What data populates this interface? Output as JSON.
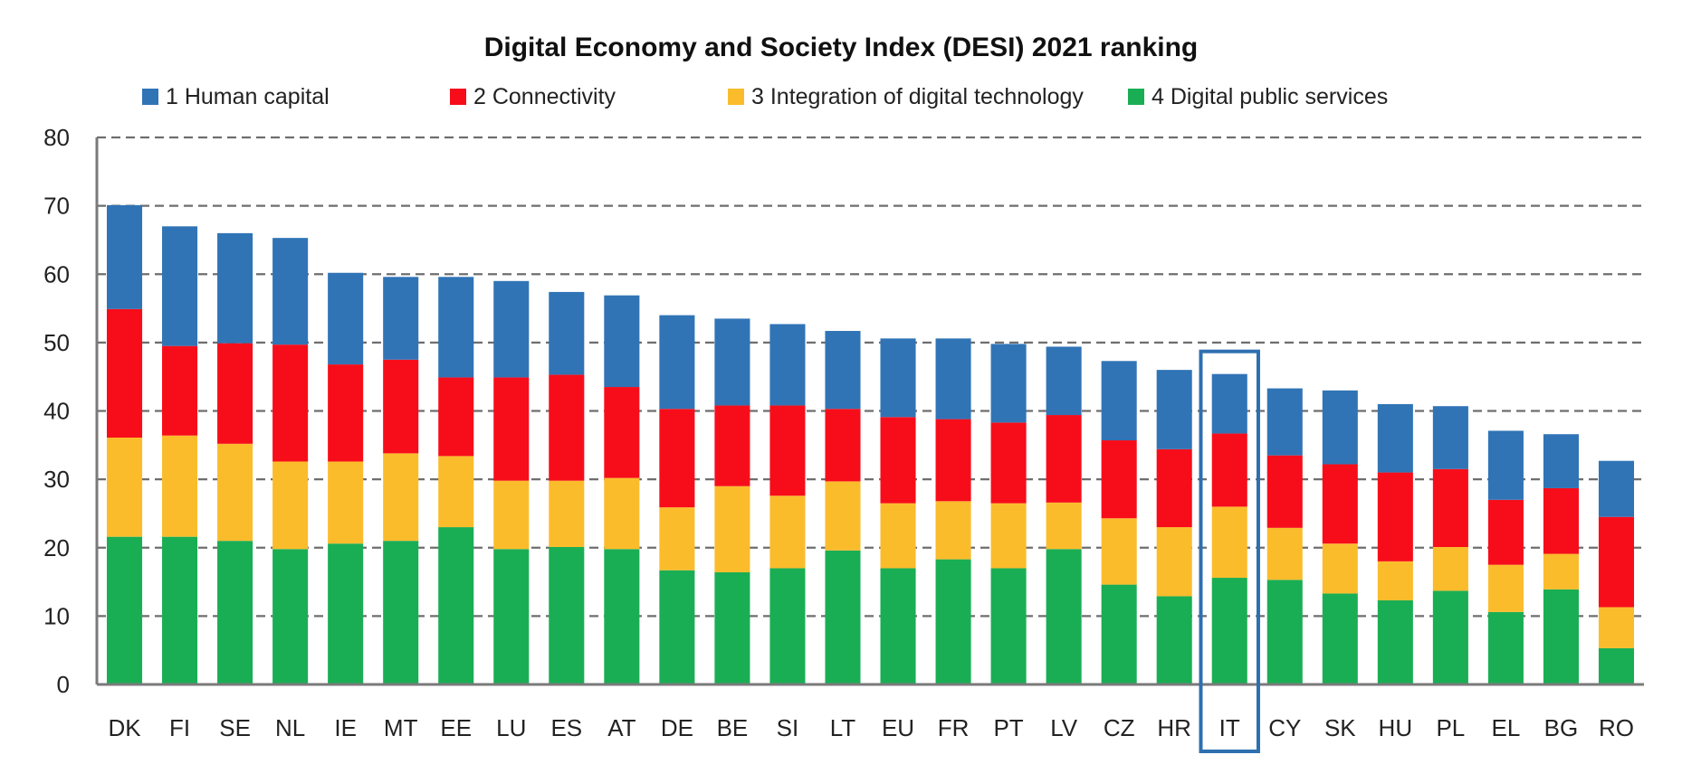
{
  "chart_data": {
    "type": "bar",
    "stacked": true,
    "title": "Digital Economy and Society Index (DESI) 2021 ranking",
    "xlabel": "",
    "ylabel": "",
    "ylim": [
      0,
      80
    ],
    "yticks": [
      0,
      10,
      20,
      30,
      40,
      50,
      60,
      70,
      80
    ],
    "grid": true,
    "legend_position": "top",
    "highlighted_category": "IT",
    "categories": [
      "DK",
      "FI",
      "SE",
      "NL",
      "IE",
      "MT",
      "EE",
      "LU",
      "ES",
      "AT",
      "DE",
      "BE",
      "SI",
      "LT",
      "EU",
      "FR",
      "PT",
      "LV",
      "CZ",
      "HR",
      "IT",
      "CY",
      "SK",
      "HU",
      "PL",
      "EL",
      "BG",
      "RO"
    ],
    "series": [
      {
        "name": "4 Digital public services",
        "color": "#1aae54",
        "values": [
          21.6,
          21.6,
          21.0,
          19.8,
          20.6,
          21.0,
          23.0,
          19.8,
          20.1,
          19.8,
          16.7,
          16.4,
          17.0,
          19.6,
          17.0,
          18.3,
          17.0,
          19.8,
          14.6,
          12.9,
          15.6,
          15.3,
          13.3,
          12.3,
          13.7,
          10.6,
          13.9,
          5.3
        ]
      },
      {
        "name": "3 Integration of digital technology",
        "color": "#fbbc2c",
        "values": [
          14.5,
          14.8,
          14.2,
          12.8,
          12.0,
          12.8,
          10.4,
          10.0,
          9.7,
          10.4,
          9.2,
          12.6,
          10.6,
          10.1,
          9.5,
          8.5,
          9.5,
          6.8,
          9.7,
          10.1,
          10.4,
          7.6,
          7.3,
          5.7,
          6.4,
          6.9,
          5.2,
          6.0
        ]
      },
      {
        "name": "2 Connectivity",
        "color": "#f70d1a",
        "values": [
          18.8,
          13.1,
          14.7,
          17.1,
          14.2,
          13.7,
          11.5,
          15.1,
          15.5,
          13.3,
          14.4,
          11.8,
          13.2,
          10.6,
          12.6,
          12.0,
          11.8,
          12.8,
          11.4,
          11.4,
          10.7,
          10.6,
          11.6,
          13.0,
          11.4,
          9.5,
          9.6,
          13.2
        ]
      },
      {
        "name": "1 Human capital",
        "color": "#3074b6",
        "values": [
          15.2,
          17.5,
          16.1,
          15.6,
          13.4,
          12.1,
          14.7,
          14.1,
          12.1,
          13.4,
          13.7,
          12.7,
          11.9,
          11.4,
          11.5,
          11.8,
          11.5,
          10.0,
          11.6,
          11.6,
          8.7,
          9.8,
          10.8,
          10.0,
          9.2,
          10.1,
          7.9,
          8.2
        ]
      }
    ],
    "totals": [
      70.1,
      67.0,
      66.0,
      65.3,
      60.2,
      59.6,
      59.6,
      59.0,
      57.4,
      56.9,
      54.0,
      53.5,
      52.7,
      51.7,
      50.6,
      50.6,
      49.8,
      49.4,
      47.3,
      46.0,
      45.4,
      43.3,
      43.0,
      41.0,
      40.7,
      37.1,
      36.6,
      32.7
    ]
  },
  "legend_order": [
    3,
    2,
    1,
    0
  ],
  "colors": {
    "grid": "#6e6e6e",
    "axis": "#7a7a7a",
    "highlight_box": "#2e6fb0"
  }
}
